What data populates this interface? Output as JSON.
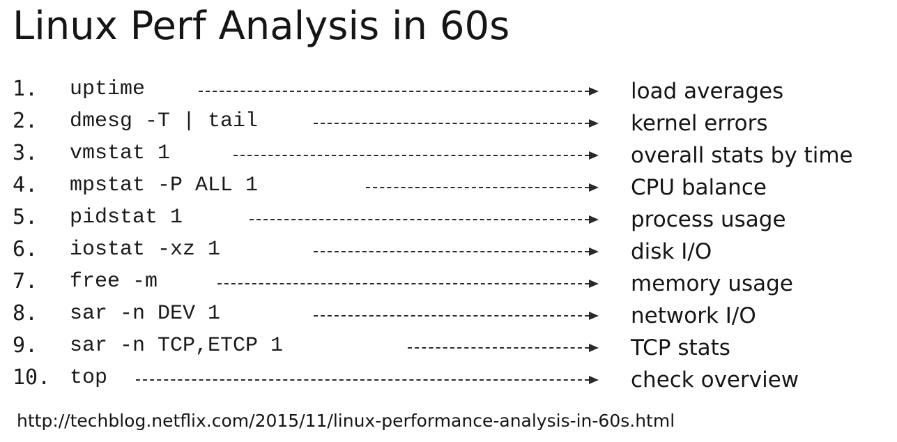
{
  "title": "Linux Perf Analysis in 60s",
  "items": [
    {
      "number": "1.",
      "command": "uptime",
      "description": "load averages"
    },
    {
      "number": "2.",
      "command": "dmesg -T | tail",
      "description": "kernel errors"
    },
    {
      "number": "3.",
      "command": "vmstat 1",
      "description": "overall stats by time"
    },
    {
      "number": "4.",
      "command": "mpstat -P ALL 1",
      "description": "CPU balance"
    },
    {
      "number": "5.",
      "command": "pidstat 1",
      "description": "process usage"
    },
    {
      "number": "6.",
      "command": "iostat -xz 1",
      "description": "disk I/O"
    },
    {
      "number": "7.",
      "command": "free -m",
      "description": "memory usage"
    },
    {
      "number": "8.",
      "command": "sar -n DEV 1",
      "description": "network I/O"
    },
    {
      "number": "9.",
      "command": "sar -n TCP,ETCP 1",
      "description": "TCP stats"
    },
    {
      "number": "10.",
      "command": "top",
      "description": "check overview"
    }
  ],
  "url": "http://techblog.netflix.com/2015/11/linux-performance-analysis-in-60s.html"
}
